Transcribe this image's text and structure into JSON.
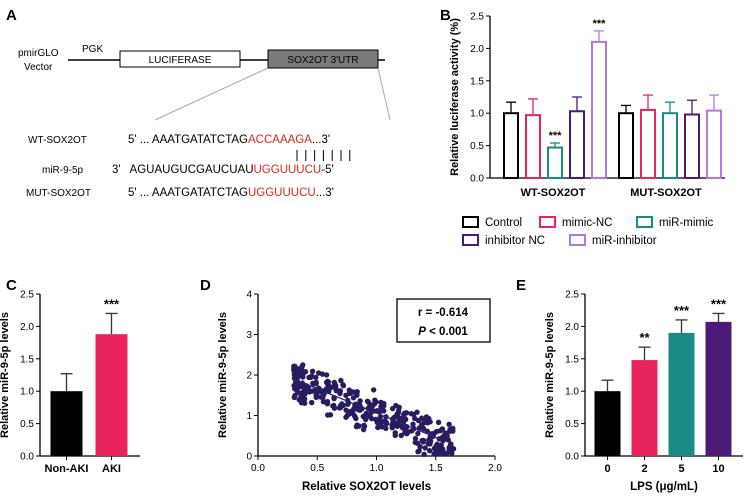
{
  "panels": {
    "A": {
      "label": "A",
      "vector_label": "pmirGLO Vector",
      "vector_line1": "pmirGLO",
      "vector_line2": "Vector",
      "promoter": "PGK",
      "luciferase": "LUCIFERASE",
      "utr": "SOX2OT 3'UTR",
      "wt_label": "WT-SOX2OT",
      "wt_prefix": "5' ... AAATGATATCTAG",
      "wt_site": "ACCAAAGA",
      "wt_suffix": "...3'",
      "mir_label": "miR-9-5p",
      "mir_prefix": "3'   AGUAUGUCGAUCUAU",
      "mir_site": "UGGUUUCU",
      "mir_suffix": "-5'",
      "mut_label": "MUT-SOX2OT",
      "mut_prefix": "5' ... AAATGATATCTAG",
      "mut_site": "UGGUUUCU",
      "mut_suffix": "...3'"
    },
    "B": {
      "label": "B"
    },
    "C": {
      "label": "C"
    },
    "D": {
      "label": "D"
    },
    "E": {
      "label": "E"
    }
  },
  "colors": {
    "control": "#000000",
    "mimic_nc": "#e8245f",
    "mir_mimic": "#1a8a84",
    "inhibitor_nc": "#4b1a78",
    "mir_inhibitor": "#b57ad9",
    "red_seq": "#e0251c",
    "scatter": "#2a1a5e"
  },
  "chart_data": [
    {
      "panel": "B",
      "type": "bar",
      "ylabel": "Relative luciferase activity (%)",
      "ylim": [
        0,
        2.5
      ],
      "yticks": [
        "0.0",
        "0.5",
        "1.0",
        "1.5",
        "2.0",
        "2.5"
      ],
      "groups": [
        "WT-SOX2OT",
        "MUT-SOX2OT"
      ],
      "series": [
        {
          "name": "Control",
          "values": [
            1.0,
            1.0
          ],
          "errors": [
            0.17,
            0.12
          ],
          "color_key": "control"
        },
        {
          "name": "mimic-NC",
          "values": [
            0.97,
            1.05
          ],
          "errors": [
            0.25,
            0.23
          ],
          "color_key": "mimic_nc"
        },
        {
          "name": "miR-mimic",
          "values": [
            0.47,
            1.0
          ],
          "errors": [
            0.07,
            0.17
          ],
          "color_key": "mir_mimic"
        },
        {
          "name": "inhibitor NC",
          "values": [
            1.03,
            0.98
          ],
          "errors": [
            0.22,
            0.22
          ],
          "color_key": "inhibitor_nc"
        },
        {
          "name": "miR-inhibitor",
          "values": [
            2.1,
            1.04
          ],
          "errors": [
            0.17,
            0.24
          ],
          "color_key": "mir_inhibitor"
        }
      ],
      "significance": [
        {
          "group": 0,
          "series": 2,
          "text": "***"
        },
        {
          "group": 0,
          "series": 4,
          "text": "***"
        }
      ],
      "legend": [
        "Control",
        "mimic-NC",
        "miR-mimic",
        "inhibitor NC",
        "miR-inhibitor"
      ]
    },
    {
      "panel": "C",
      "type": "bar",
      "ylabel": "Relative miR-9-5p levels",
      "ylim": [
        0,
        2.5
      ],
      "yticks": [
        "0.0",
        "0.5",
        "1.0",
        "1.5",
        "2.0",
        "2.5"
      ],
      "categories": [
        "Non-AKI",
        "AKI"
      ],
      "values": [
        1.0,
        1.88
      ],
      "errors": [
        0.27,
        0.32
      ],
      "color_keys": [
        "control",
        "mimic_nc"
      ],
      "significance": [
        {
          "index": 1,
          "text": "***"
        }
      ]
    },
    {
      "panel": "D",
      "type": "scatter",
      "xlabel": "Relative SOX2OT levels",
      "ylabel": "Relative miR-9-5p levels",
      "xlim": [
        0,
        2.0
      ],
      "ylim": [
        0,
        4
      ],
      "xticks": [
        "0.0",
        "0.5",
        "1.0",
        "1.5",
        "2.0"
      ],
      "yticks": [
        "0",
        "1",
        "2",
        "3",
        "4"
      ],
      "r_text": "r = -0.614",
      "p_prefix": "P",
      "p_suffix": " < 0.001",
      "fit": {
        "x": [
          0.3,
          1.55
        ],
        "y": [
          1.9,
          0.4
        ]
      },
      "n_points": 320,
      "seed": 614
    },
    {
      "panel": "E",
      "type": "bar",
      "xlabel": "LPS (μg/mL)",
      "ylabel": "Relative miR-9-5p levels",
      "ylim": [
        0,
        2.5
      ],
      "yticks": [
        "0.0",
        "0.5",
        "1.0",
        "1.5",
        "2.0",
        "2.5"
      ],
      "categories": [
        "0",
        "2",
        "5",
        "10"
      ],
      "values": [
        1.0,
        1.48,
        1.9,
        2.07
      ],
      "errors": [
        0.17,
        0.2,
        0.2,
        0.13
      ],
      "color_keys": [
        "control",
        "mimic_nc",
        "mir_mimic",
        "inhibitor_nc"
      ],
      "significance": [
        {
          "index": 1,
          "text": "**"
        },
        {
          "index": 2,
          "text": "***"
        },
        {
          "index": 3,
          "text": "***"
        }
      ]
    }
  ]
}
